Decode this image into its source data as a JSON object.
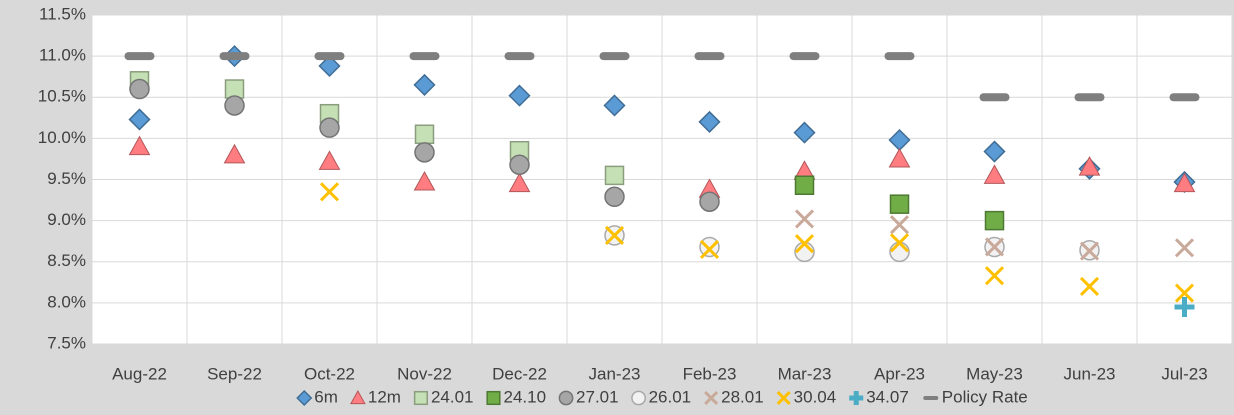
{
  "chart_data": {
    "type": "scatter",
    "categories": [
      "Aug-22",
      "Sep-22",
      "Oct-22",
      "Nov-22",
      "Dec-22",
      "Jan-23",
      "Feb-23",
      "Mar-23",
      "Apr-23",
      "May-23",
      "Jun-23",
      "Jul-23"
    ],
    "ylim": [
      7.5,
      11.5
    ],
    "yticks": [
      {
        "value": 7.5,
        "label": "7.5%"
      },
      {
        "value": 8,
        "label": "8.0%"
      },
      {
        "value": 8.5,
        "label": "8.5%"
      },
      {
        "value": 9,
        "label": "9.0%"
      },
      {
        "value": 9.5,
        "label": "9.5%"
      },
      {
        "value": 10,
        "label": "10.0%"
      },
      {
        "value": 10.5,
        "label": "10.5%"
      },
      {
        "value": 11,
        "label": "11.0%"
      },
      {
        "value": 11.5,
        "label": "11.5%"
      }
    ],
    "grid": true,
    "legend": "bottom",
    "series": [
      {
        "name": "6m",
        "marker": "diamond",
        "color": "#5b9bd5",
        "values": [
          10.23,
          11.0,
          10.88,
          10.65,
          10.52,
          10.4,
          10.2,
          10.07,
          9.98,
          9.84,
          9.63,
          9.47
        ]
      },
      {
        "name": "12m",
        "marker": "triangle",
        "color": "#ff7c80",
        "values": [
          9.9,
          9.8,
          9.72,
          9.47,
          9.45,
          null,
          9.38,
          9.6,
          9.75,
          9.55,
          9.65,
          9.45
        ]
      },
      {
        "name": "24.01",
        "marker": "square",
        "color": "#c5e0b4",
        "values": [
          10.7,
          10.6,
          10.3,
          10.05,
          9.85,
          9.55,
          null,
          null,
          null,
          null,
          null,
          null
        ]
      },
      {
        "name": "24.10",
        "marker": "square",
        "color": "#70ad47",
        "values": [
          null,
          null,
          null,
          null,
          null,
          null,
          null,
          9.43,
          9.2,
          9.0,
          null,
          null
        ]
      },
      {
        "name": "27.01",
        "marker": "circle",
        "color": "#a6a6a6",
        "values": [
          10.6,
          10.4,
          10.13,
          9.83,
          9.68,
          9.29,
          9.23,
          null,
          null,
          null,
          null,
          null
        ]
      },
      {
        "name": "26.01",
        "marker": "circle",
        "color": "#f2f2f2",
        "values": [
          null,
          null,
          null,
          null,
          null,
          8.82,
          8.68,
          8.62,
          8.62,
          8.68,
          8.64,
          null
        ]
      },
      {
        "name": "28.01",
        "marker": "x",
        "color": "#c9a99a",
        "values": [
          null,
          null,
          null,
          null,
          null,
          null,
          null,
          9.02,
          8.95,
          8.68,
          8.63,
          8.67
        ]
      },
      {
        "name": "30.04",
        "marker": "x",
        "color": "#ffc000",
        "values": [
          null,
          null,
          9.35,
          null,
          null,
          8.82,
          8.65,
          8.72,
          8.73,
          8.33,
          8.2,
          8.12
        ]
      },
      {
        "name": "34.07",
        "marker": "plus",
        "color": "#4bacc6",
        "values": [
          null,
          null,
          null,
          null,
          null,
          null,
          null,
          null,
          null,
          null,
          null,
          7.95
        ]
      },
      {
        "name": "Policy Rate",
        "marker": "dash",
        "color": "#7f7f7f",
        "values": [
          11.0,
          11.0,
          11.0,
          11.0,
          11.0,
          11.0,
          11.0,
          11.0,
          11.0,
          10.5,
          10.5,
          10.5
        ]
      }
    ]
  }
}
